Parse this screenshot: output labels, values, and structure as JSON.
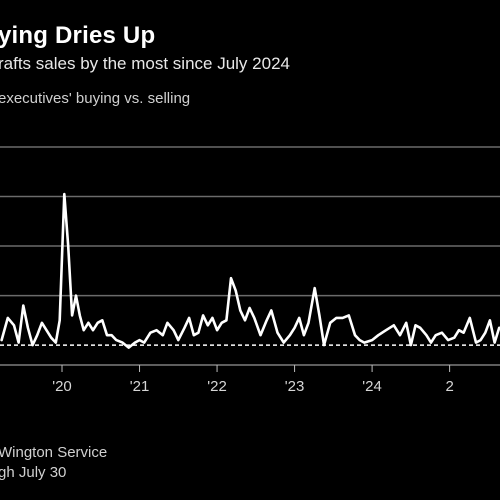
{
  "title": "ying Dries Up",
  "subtitle": "rafts sales by the most since July 2024",
  "series_label": "executives' buying vs. selling",
  "source": "Wington Service",
  "note": "gh July 30",
  "colors": {
    "background": "#000000",
    "line": "#ffffff",
    "grid": "#6b6b6b",
    "text": "#d6d6d6"
  },
  "chart_data": {
    "type": "line",
    "title": "ying Dries Up",
    "subtitle": "rafts sales by the most since July 2024",
    "ylabel": "executives' buying vs. selling",
    "xlabel": "",
    "x_tick_labels": [
      "'20",
      "'21",
      "'22",
      "'23",
      "'24",
      "2"
    ],
    "x_tick_values": [
      2020,
      2021,
      2022,
      2023,
      2024,
      2025
    ],
    "xlim": [
      2019.2,
      2025.65
    ],
    "ylim": [
      -0.2,
      4.0
    ],
    "gridlines_y": [
      0,
      1,
      2,
      3,
      4
    ],
    "reference_line": {
      "y": 0,
      "style": "dashed"
    },
    "series": [
      {
        "x": [
          2019.22,
          2019.3,
          2019.38,
          2019.44,
          2019.5,
          2019.56,
          2019.62,
          2019.68,
          2019.74,
          2019.8,
          2019.86,
          2019.92,
          2019.97,
          2020.03,
          2020.08,
          2020.13,
          2020.18,
          2020.23,
          2020.28,
          2020.34,
          2020.4,
          2020.46,
          2020.52,
          2020.58,
          2020.64,
          2020.7,
          2020.78,
          2020.86,
          2020.94,
          2021.0,
          2021.06,
          2021.14,
          2021.22,
          2021.3,
          2021.36,
          2021.44,
          2021.5,
          2021.58,
          2021.64,
          2021.7,
          2021.76,
          2021.82,
          2021.88,
          2021.94,
          2022.0,
          2022.06,
          2022.12,
          2022.18,
          2022.24,
          2022.3,
          2022.36,
          2022.42,
          2022.48,
          2022.56,
          2022.64,
          2022.7,
          2022.78,
          2022.86,
          2022.94,
          2023.0,
          2023.06,
          2023.12,
          2023.18,
          2023.26,
          2023.32,
          2023.38,
          2023.46,
          2023.54,
          2023.62,
          2023.7,
          2023.78,
          2023.84,
          2023.9,
          2024.0,
          2024.08,
          2024.18,
          2024.28,
          2024.36,
          2024.44,
          2024.5,
          2024.56,
          2024.62,
          2024.7,
          2024.76,
          2024.82,
          2024.9,
          2024.98,
          2025.06,
          2025.12,
          2025.18,
          2025.26,
          2025.34,
          2025.4,
          2025.46,
          2025.52,
          2025.58,
          2025.64
        ],
        "y": [
          0.1,
          0.55,
          0.4,
          0.05,
          0.8,
          0.35,
          0.0,
          0.2,
          0.45,
          0.3,
          0.15,
          0.05,
          0.5,
          3.05,
          2.0,
          0.6,
          1.0,
          0.6,
          0.3,
          0.45,
          0.3,
          0.45,
          0.5,
          0.2,
          0.2,
          0.1,
          0.05,
          -0.05,
          0.05,
          0.1,
          0.05,
          0.25,
          0.3,
          0.2,
          0.45,
          0.3,
          0.1,
          0.35,
          0.55,
          0.2,
          0.25,
          0.6,
          0.4,
          0.55,
          0.3,
          0.45,
          0.5,
          1.35,
          1.1,
          0.7,
          0.5,
          0.75,
          0.55,
          0.2,
          0.5,
          0.7,
          0.25,
          0.05,
          0.2,
          0.35,
          0.55,
          0.2,
          0.45,
          1.15,
          0.6,
          0.0,
          0.45,
          0.55,
          0.55,
          0.6,
          0.2,
          0.1,
          0.05,
          0.1,
          0.2,
          0.3,
          0.4,
          0.2,
          0.45,
          0.0,
          0.4,
          0.35,
          0.2,
          0.05,
          0.2,
          0.25,
          0.1,
          0.15,
          0.3,
          0.25,
          0.55,
          0.05,
          0.1,
          0.25,
          0.5,
          0.05,
          0.35
        ]
      }
    ]
  }
}
